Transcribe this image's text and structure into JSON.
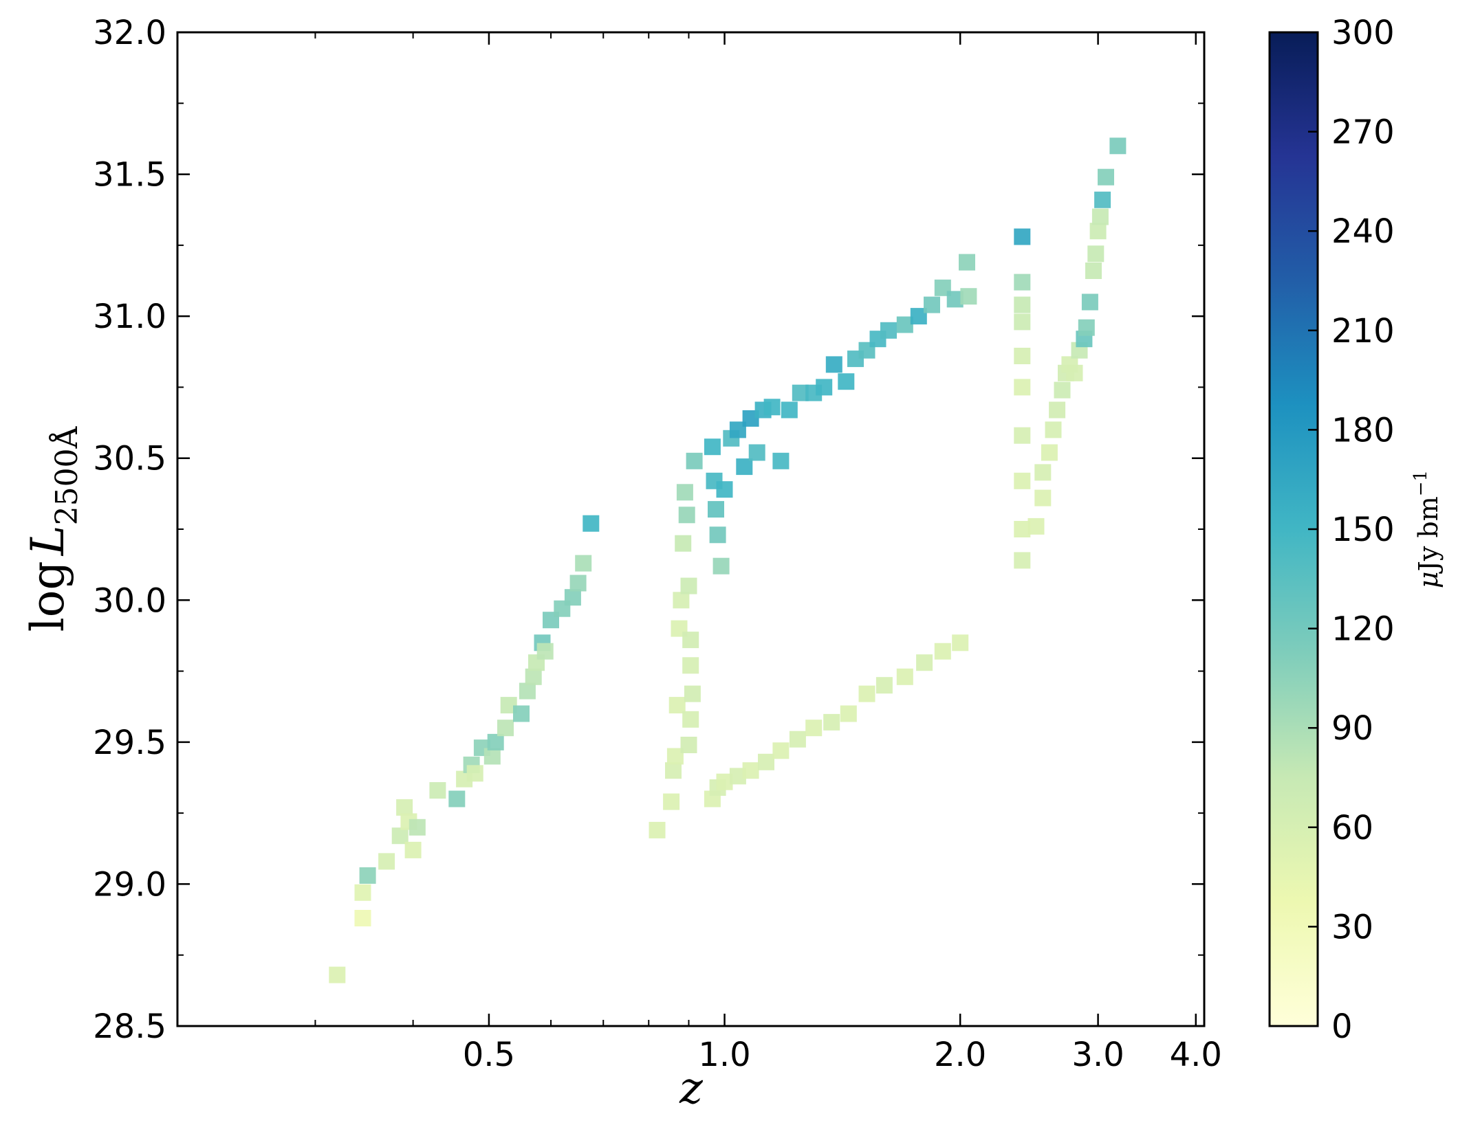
{
  "chart_data": {
    "type": "scatter",
    "x_label": "z",
    "y_label": {
      "prefix": "log",
      "main": "L",
      "subscript": "2500Å"
    },
    "x_scale": "log",
    "xlim": [
      0.2,
      4.1
    ],
    "ylim": [
      28.5,
      32.0
    ],
    "x_ticks": [
      {
        "value": 0.5,
        "label": "0.5"
      },
      {
        "value": 1.0,
        "label": "1.0"
      },
      {
        "value": 2.0,
        "label": "2.0"
      },
      {
        "value": 3.0,
        "label": "3.0"
      },
      {
        "value": 4.0,
        "label": "4.0"
      }
    ],
    "x_minor_ticks": [
      0.3,
      0.4,
      0.6,
      0.7,
      0.8,
      0.9
    ],
    "y_ticks": [
      {
        "value": 28.5,
        "label": "28.5"
      },
      {
        "value": 29.0,
        "label": "29.0"
      },
      {
        "value": 29.5,
        "label": "29.5"
      },
      {
        "value": 30.0,
        "label": "30.0"
      },
      {
        "value": 30.5,
        "label": "30.5"
      },
      {
        "value": 31.0,
        "label": "31.0"
      },
      {
        "value": 31.5,
        "label": "31.5"
      },
      {
        "value": 32.0,
        "label": "32.0"
      }
    ],
    "y_minor_step": 0.25,
    "colorbar": {
      "label": {
        "mu": "μ",
        "text": "Jy bm",
        "sup": "−1"
      },
      "range": [
        0,
        300
      ],
      "ticks": [
        {
          "value": 0,
          "label": "0"
        },
        {
          "value": 30,
          "label": "30"
        },
        {
          "value": 60,
          "label": "60"
        },
        {
          "value": 90,
          "label": "90"
        },
        {
          "value": 120,
          "label": "120"
        },
        {
          "value": 150,
          "label": "150"
        },
        {
          "value": 180,
          "label": "180"
        },
        {
          "value": 210,
          "label": "210"
        },
        {
          "value": 240,
          "label": "240"
        },
        {
          "value": 270,
          "label": "270"
        },
        {
          "value": 300,
          "label": "300"
        }
      ],
      "colormap": [
        "#ffffd9",
        "#edf8b1",
        "#c7e9b4",
        "#7fcdbb",
        "#41b6c4",
        "#1d91c0",
        "#225ea8",
        "#253494",
        "#081d58"
      ]
    },
    "marker": "square",
    "points": [
      {
        "x": 0.32,
        "y": 28.68,
        "c": 55
      },
      {
        "x": 0.345,
        "y": 28.88,
        "c": 35
      },
      {
        "x": 0.345,
        "y": 28.97,
        "c": 50
      },
      {
        "x": 0.35,
        "y": 29.03,
        "c": 105
      },
      {
        "x": 0.37,
        "y": 29.08,
        "c": 60
      },
      {
        "x": 0.385,
        "y": 29.17,
        "c": 70
      },
      {
        "x": 0.39,
        "y": 29.27,
        "c": 60
      },
      {
        "x": 0.395,
        "y": 29.22,
        "c": 55
      },
      {
        "x": 0.4,
        "y": 29.12,
        "c": 55
      },
      {
        "x": 0.405,
        "y": 29.2,
        "c": 80
      },
      {
        "x": 0.43,
        "y": 29.33,
        "c": 70
      },
      {
        "x": 0.455,
        "y": 29.3,
        "c": 110
      },
      {
        "x": 0.465,
        "y": 29.37,
        "c": 60
      },
      {
        "x": 0.475,
        "y": 29.42,
        "c": 95
      },
      {
        "x": 0.48,
        "y": 29.39,
        "c": 60
      },
      {
        "x": 0.49,
        "y": 29.48,
        "c": 105
      },
      {
        "x": 0.505,
        "y": 29.45,
        "c": 85
      },
      {
        "x": 0.51,
        "y": 29.5,
        "c": 110
      },
      {
        "x": 0.525,
        "y": 29.55,
        "c": 80
      },
      {
        "x": 0.53,
        "y": 29.63,
        "c": 75
      },
      {
        "x": 0.55,
        "y": 29.6,
        "c": 110
      },
      {
        "x": 0.56,
        "y": 29.68,
        "c": 85
      },
      {
        "x": 0.57,
        "y": 29.73,
        "c": 80
      },
      {
        "x": 0.575,
        "y": 29.78,
        "c": 75
      },
      {
        "x": 0.585,
        "y": 29.85,
        "c": 120
      },
      {
        "x": 0.59,
        "y": 29.82,
        "c": 80
      },
      {
        "x": 0.6,
        "y": 29.93,
        "c": 115
      },
      {
        "x": 0.62,
        "y": 29.97,
        "c": 110
      },
      {
        "x": 0.64,
        "y": 30.01,
        "c": 110
      },
      {
        "x": 0.65,
        "y": 30.06,
        "c": 100
      },
      {
        "x": 0.66,
        "y": 30.13,
        "c": 90
      },
      {
        "x": 0.675,
        "y": 30.27,
        "c": 150
      },
      {
        "x": 0.82,
        "y": 29.19,
        "c": 55
      },
      {
        "x": 0.855,
        "y": 29.29,
        "c": 55
      },
      {
        "x": 0.86,
        "y": 29.4,
        "c": 60
      },
      {
        "x": 0.865,
        "y": 29.45,
        "c": 55
      },
      {
        "x": 0.87,
        "y": 29.63,
        "c": 55
      },
      {
        "x": 0.875,
        "y": 29.9,
        "c": 55
      },
      {
        "x": 0.88,
        "y": 30.0,
        "c": 60
      },
      {
        "x": 0.885,
        "y": 30.2,
        "c": 75
      },
      {
        "x": 0.89,
        "y": 30.38,
        "c": 95
      },
      {
        "x": 0.895,
        "y": 30.3,
        "c": 100
      },
      {
        "x": 0.9,
        "y": 29.49,
        "c": 65
      },
      {
        "x": 0.905,
        "y": 29.58,
        "c": 60
      },
      {
        "x": 0.91,
        "y": 29.67,
        "c": 65
      },
      {
        "x": 0.905,
        "y": 29.77,
        "c": 60
      },
      {
        "x": 0.905,
        "y": 29.86,
        "c": 65
      },
      {
        "x": 0.9,
        "y": 30.05,
        "c": 70
      },
      {
        "x": 0.915,
        "y": 30.49,
        "c": 115
      },
      {
        "x": 0.965,
        "y": 30.54,
        "c": 150
      },
      {
        "x": 0.97,
        "y": 30.42,
        "c": 145
      },
      {
        "x": 0.975,
        "y": 30.32,
        "c": 130
      },
      {
        "x": 0.98,
        "y": 30.23,
        "c": 120
      },
      {
        "x": 0.99,
        "y": 30.12,
        "c": 100
      },
      {
        "x": 1.0,
        "y": 30.39,
        "c": 150
      },
      {
        "x": 1.02,
        "y": 30.57,
        "c": 140
      },
      {
        "x": 1.04,
        "y": 30.6,
        "c": 165
      },
      {
        "x": 1.06,
        "y": 30.47,
        "c": 155
      },
      {
        "x": 1.08,
        "y": 30.64,
        "c": 170
      },
      {
        "x": 1.1,
        "y": 30.52,
        "c": 140
      },
      {
        "x": 1.12,
        "y": 30.67,
        "c": 155
      },
      {
        "x": 1.15,
        "y": 30.68,
        "c": 150
      },
      {
        "x": 1.18,
        "y": 30.49,
        "c": 145
      },
      {
        "x": 1.21,
        "y": 30.67,
        "c": 150
      },
      {
        "x": 1.25,
        "y": 30.73,
        "c": 140
      },
      {
        "x": 1.3,
        "y": 30.73,
        "c": 145
      },
      {
        "x": 1.34,
        "y": 30.75,
        "c": 150
      },
      {
        "x": 1.38,
        "y": 30.83,
        "c": 160
      },
      {
        "x": 1.43,
        "y": 30.77,
        "c": 150
      },
      {
        "x": 1.47,
        "y": 30.85,
        "c": 140
      },
      {
        "x": 1.52,
        "y": 30.88,
        "c": 135
      },
      {
        "x": 1.57,
        "y": 30.92,
        "c": 145
      },
      {
        "x": 1.62,
        "y": 30.95,
        "c": 140
      },
      {
        "x": 1.7,
        "y": 30.97,
        "c": 125
      },
      {
        "x": 1.77,
        "y": 31.0,
        "c": 155
      },
      {
        "x": 1.84,
        "y": 31.04,
        "c": 120
      },
      {
        "x": 1.9,
        "y": 31.1,
        "c": 110
      },
      {
        "x": 1.97,
        "y": 31.06,
        "c": 120
      },
      {
        "x": 2.04,
        "y": 31.19,
        "c": 105
      },
      {
        "x": 2.05,
        "y": 31.07,
        "c": 95
      },
      {
        "x": 0.965,
        "y": 29.3,
        "c": 55
      },
      {
        "x": 0.98,
        "y": 29.34,
        "c": 60
      },
      {
        "x": 1.0,
        "y": 29.36,
        "c": 55
      },
      {
        "x": 1.04,
        "y": 29.38,
        "c": 60
      },
      {
        "x": 1.08,
        "y": 29.4,
        "c": 55
      },
      {
        "x": 1.13,
        "y": 29.43,
        "c": 60
      },
      {
        "x": 1.18,
        "y": 29.47,
        "c": 55
      },
      {
        "x": 1.24,
        "y": 29.51,
        "c": 60
      },
      {
        "x": 1.3,
        "y": 29.55,
        "c": 55
      },
      {
        "x": 1.37,
        "y": 29.57,
        "c": 60
      },
      {
        "x": 1.44,
        "y": 29.6,
        "c": 55
      },
      {
        "x": 1.52,
        "y": 29.67,
        "c": 55
      },
      {
        "x": 1.6,
        "y": 29.7,
        "c": 60
      },
      {
        "x": 1.7,
        "y": 29.73,
        "c": 55
      },
      {
        "x": 1.8,
        "y": 29.78,
        "c": 60
      },
      {
        "x": 1.9,
        "y": 29.82,
        "c": 55
      },
      {
        "x": 2.0,
        "y": 29.85,
        "c": 55
      },
      {
        "x": 2.4,
        "y": 30.14,
        "c": 60
      },
      {
        "x": 2.4,
        "y": 30.25,
        "c": 55
      },
      {
        "x": 2.4,
        "y": 30.42,
        "c": 55
      },
      {
        "x": 2.4,
        "y": 30.58,
        "c": 60
      },
      {
        "x": 2.4,
        "y": 30.75,
        "c": 55
      },
      {
        "x": 2.4,
        "y": 30.86,
        "c": 60
      },
      {
        "x": 2.4,
        "y": 30.98,
        "c": 70
      },
      {
        "x": 2.4,
        "y": 31.04,
        "c": 75
      },
      {
        "x": 2.4,
        "y": 31.12,
        "c": 95
      },
      {
        "x": 2.4,
        "y": 31.28,
        "c": 165
      },
      {
        "x": 2.5,
        "y": 30.26,
        "c": 55
      },
      {
        "x": 2.55,
        "y": 30.36,
        "c": 55
      },
      {
        "x": 2.55,
        "y": 30.45,
        "c": 60
      },
      {
        "x": 2.6,
        "y": 30.52,
        "c": 55
      },
      {
        "x": 2.63,
        "y": 30.6,
        "c": 60
      },
      {
        "x": 2.66,
        "y": 30.67,
        "c": 65
      },
      {
        "x": 2.7,
        "y": 30.74,
        "c": 70
      },
      {
        "x": 2.73,
        "y": 30.8,
        "c": 65
      },
      {
        "x": 2.76,
        "y": 30.83,
        "c": 60
      },
      {
        "x": 2.8,
        "y": 30.8,
        "c": 60
      },
      {
        "x": 2.84,
        "y": 30.88,
        "c": 75
      },
      {
        "x": 2.88,
        "y": 30.92,
        "c": 125
      },
      {
        "x": 2.9,
        "y": 30.96,
        "c": 110
      },
      {
        "x": 2.93,
        "y": 31.05,
        "c": 115
      },
      {
        "x": 2.96,
        "y": 31.16,
        "c": 75
      },
      {
        "x": 2.98,
        "y": 31.22,
        "c": 75
      },
      {
        "x": 3.0,
        "y": 31.3,
        "c": 70
      },
      {
        "x": 3.02,
        "y": 31.35,
        "c": 75
      },
      {
        "x": 3.04,
        "y": 31.41,
        "c": 140
      },
      {
        "x": 3.07,
        "y": 31.49,
        "c": 110
      },
      {
        "x": 3.18,
        "y": 31.6,
        "c": 115
      }
    ]
  }
}
